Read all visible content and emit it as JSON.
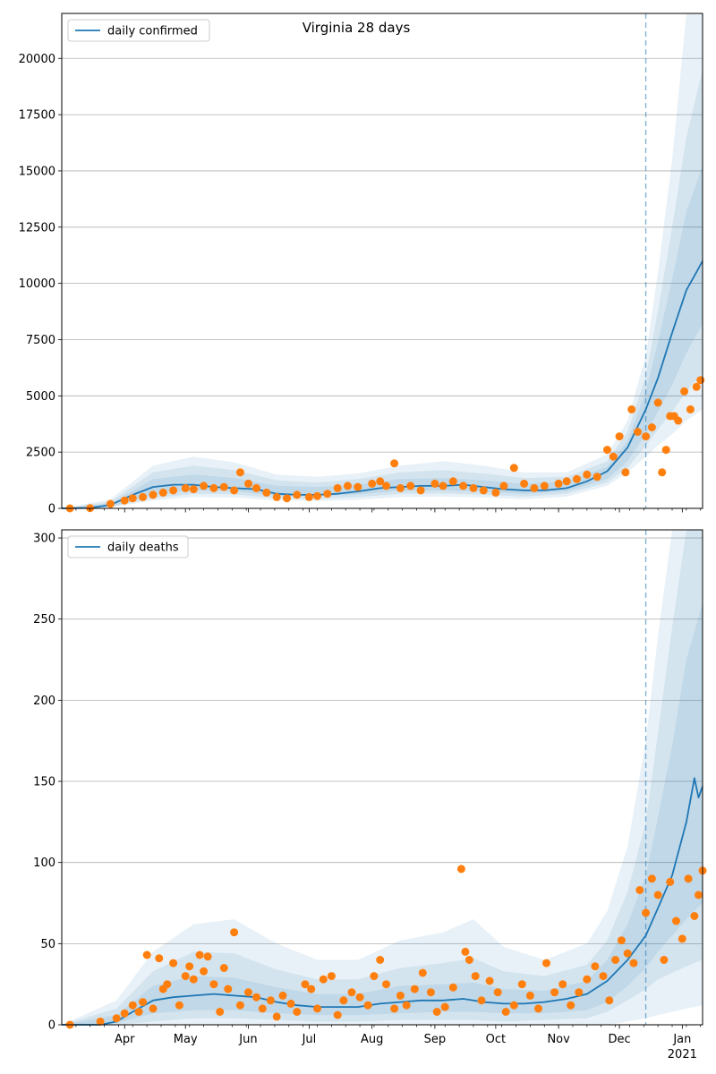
{
  "figure": {
    "title": "Virginia 28 days",
    "x_labels": [
      "Apr",
      "May",
      "Jun",
      "Jul",
      "Aug",
      "Sep",
      "Oct",
      "Nov",
      "Dec",
      "Jan",
      "2021"
    ],
    "forecast_start": "2020-12-14"
  },
  "colors": {
    "median_line": "#1f77b4",
    "band": "#1f77b4",
    "observed": "#ff7f0e",
    "grid": "#b0b0b0"
  },
  "chart_data": [
    {
      "type": "line",
      "legend_label": "daily confirmed",
      "legend_location": "upper left",
      "x_range": [
        "2020-03-01",
        "2021-01-11"
      ],
      "ylim": [
        0,
        22000
      ],
      "yticks": [
        0,
        2500,
        5000,
        7500,
        10000,
        12500,
        15000,
        17500,
        20000
      ],
      "ytick_labels": [
        "0",
        "2500",
        "5000",
        "7500",
        "10000",
        "12500",
        "15000",
        "17500",
        "20000"
      ],
      "grid": "horizontal",
      "median": {
        "x": [
          "2020-03-01",
          "2020-03-15",
          "2020-03-25",
          "2020-04-05",
          "2020-04-15",
          "2020-04-25",
          "2020-05-05",
          "2020-05-15",
          "2020-05-25",
          "2020-06-05",
          "2020-06-15",
          "2020-06-25",
          "2020-07-05",
          "2020-07-15",
          "2020-07-25",
          "2020-08-05",
          "2020-08-15",
          "2020-08-25",
          "2020-09-05",
          "2020-09-15",
          "2020-09-25",
          "2020-10-05",
          "2020-10-15",
          "2020-10-25",
          "2020-11-05",
          "2020-11-15",
          "2020-11-25",
          "2020-12-05",
          "2020-12-14",
          "2020-12-20",
          "2020-12-27",
          "2021-01-03",
          "2021-01-08",
          "2021-01-11"
        ],
        "y": [
          0,
          20,
          150,
          600,
          950,
          1050,
          1050,
          950,
          900,
          850,
          650,
          600,
          600,
          650,
          750,
          900,
          950,
          1000,
          1000,
          1050,
          950,
          850,
          800,
          800,
          900,
          1200,
          1650,
          2700,
          4400,
          5800,
          7800,
          9700,
          10500,
          11000
        ]
      },
      "bands": [
        {
          "x": [
            "2020-03-01",
            "2020-03-25",
            "2020-04-15",
            "2020-05-05",
            "2020-05-25",
            "2020-06-15",
            "2020-07-05",
            "2020-07-25",
            "2020-08-15",
            "2020-09-05",
            "2020-09-25",
            "2020-10-15",
            "2020-11-05",
            "2020-11-25",
            "2020-12-05",
            "2020-12-14",
            "2020-12-20",
            "2020-12-27",
            "2021-01-03",
            "2021-01-11"
          ],
          "low": [
            0,
            40,
            350,
            500,
            480,
            350,
            330,
            380,
            500,
            520,
            480,
            400,
            520,
            1000,
            1600,
            2300,
            2800,
            3300,
            3900,
            4400
          ],
          "high": [
            0,
            400,
            1900,
            2300,
            2050,
            1500,
            1400,
            1550,
            1900,
            2100,
            1900,
            1600,
            1600,
            2400,
            3900,
            6800,
            10500,
            15500,
            22000,
            22000
          ]
        },
        {
          "x": [
            "2020-03-01",
            "2020-03-25",
            "2020-04-15",
            "2020-05-05",
            "2020-05-25",
            "2020-06-15",
            "2020-07-05",
            "2020-07-25",
            "2020-08-15",
            "2020-09-05",
            "2020-09-25",
            "2020-10-15",
            "2020-11-05",
            "2020-11-25",
            "2020-12-05",
            "2020-12-14",
            "2020-12-20",
            "2020-12-27",
            "2021-01-03",
            "2021-01-11"
          ],
          "low": [
            0,
            60,
            450,
            650,
            620,
            450,
            430,
            500,
            650,
            660,
            610,
            520,
            650,
            1150,
            1800,
            2800,
            3500,
            4300,
            5200,
            6000
          ],
          "high": [
            0,
            300,
            1600,
            1900,
            1700,
            1250,
            1150,
            1300,
            1600,
            1700,
            1550,
            1350,
            1400,
            2100,
            3400,
            5900,
            8800,
            12500,
            16500,
            19500
          ]
        },
        {
          "x": [
            "2020-03-01",
            "2020-03-25",
            "2020-04-15",
            "2020-05-05",
            "2020-05-25",
            "2020-06-15",
            "2020-07-05",
            "2020-07-25",
            "2020-08-15",
            "2020-09-05",
            "2020-09-25",
            "2020-10-15",
            "2020-11-05",
            "2020-11-25",
            "2020-12-05",
            "2020-12-14",
            "2020-12-20",
            "2020-12-27",
            "2021-01-03",
            "2021-01-11"
          ],
          "low": [
            0,
            80,
            600,
            800,
            770,
            560,
            540,
            620,
            780,
            800,
            740,
            640,
            760,
            1300,
            2100,
            3300,
            4300,
            5500,
            6900,
            8200
          ],
          "high": [
            0,
            220,
            1300,
            1500,
            1350,
            1000,
            950,
            1050,
            1300,
            1350,
            1250,
            1100,
            1200,
            1850,
            3000,
            5200,
            7400,
            10200,
            13200,
            15200
          ]
        }
      ],
      "observed": {
        "x": [
          "2020-03-05",
          "2020-03-15",
          "2020-03-25",
          "2020-04-01",
          "2020-04-05",
          "2020-04-10",
          "2020-04-15",
          "2020-04-20",
          "2020-04-25",
          "2020-05-01",
          "2020-05-05",
          "2020-05-10",
          "2020-05-15",
          "2020-05-20",
          "2020-05-25",
          "2020-05-28",
          "2020-06-01",
          "2020-06-05",
          "2020-06-10",
          "2020-06-15",
          "2020-06-20",
          "2020-06-25",
          "2020-07-01",
          "2020-07-05",
          "2020-07-10",
          "2020-07-15",
          "2020-07-20",
          "2020-07-25",
          "2020-08-01",
          "2020-08-05",
          "2020-08-08",
          "2020-08-12",
          "2020-08-15",
          "2020-08-20",
          "2020-08-25",
          "2020-09-01",
          "2020-09-05",
          "2020-09-10",
          "2020-09-15",
          "2020-09-20",
          "2020-09-25",
          "2020-10-01",
          "2020-10-05",
          "2020-10-10",
          "2020-10-15",
          "2020-10-20",
          "2020-10-25",
          "2020-11-01",
          "2020-11-05",
          "2020-11-10",
          "2020-11-15",
          "2020-11-20",
          "2020-11-25",
          "2020-11-28",
          "2020-12-01",
          "2020-12-04",
          "2020-12-07",
          "2020-12-10",
          "2020-12-14",
          "2020-12-17",
          "2020-12-20",
          "2020-12-22",
          "2020-12-24",
          "2020-12-26",
          "2020-12-28",
          "2020-12-30",
          "2021-01-02",
          "2021-01-05",
          "2021-01-08",
          "2021-01-10"
        ],
        "y": [
          0,
          10,
          200,
          350,
          450,
          500,
          600,
          700,
          800,
          900,
          850,
          1000,
          900,
          950,
          800,
          1600,
          1100,
          900,
          700,
          500,
          450,
          600,
          500,
          550,
          650,
          900,
          1000,
          950,
          1100,
          1200,
          1000,
          2000,
          900,
          1000,
          800,
          1100,
          1000,
          1200,
          1000,
          900,
          800,
          700,
          1000,
          1800,
          1100,
          900,
          1000,
          1100,
          1200,
          1300,
          1500,
          1400,
          2600,
          2300,
          3200,
          1600,
          4400,
          3400,
          3200,
          3600,
          4700,
          1600,
          2600,
          4100,
          4100,
          3900,
          5200,
          4400,
          5400,
          5700
        ]
      }
    },
    {
      "type": "line",
      "legend_label": "daily deaths",
      "legend_location": "upper left",
      "x_range": [
        "2020-03-01",
        "2021-01-11"
      ],
      "ylim": [
        0,
        305
      ],
      "yticks": [
        0,
        50,
        100,
        150,
        200,
        250,
        300
      ],
      "ytick_labels": [
        "0",
        "50",
        "100",
        "150",
        "200",
        "250",
        "300"
      ],
      "grid": "horizontal",
      "median": {
        "x": [
          "2020-03-01",
          "2020-03-20",
          "2020-03-28",
          "2020-04-05",
          "2020-04-15",
          "2020-04-25",
          "2020-05-05",
          "2020-05-15",
          "2020-05-25",
          "2020-06-05",
          "2020-06-15",
          "2020-06-25",
          "2020-07-05",
          "2020-07-15",
          "2020-07-25",
          "2020-08-05",
          "2020-08-15",
          "2020-08-25",
          "2020-09-05",
          "2020-09-15",
          "2020-09-25",
          "2020-10-05",
          "2020-10-15",
          "2020-10-25",
          "2020-11-05",
          "2020-11-15",
          "2020-11-25",
          "2020-12-05",
          "2020-12-14",
          "2020-12-20",
          "2020-12-27",
          "2021-01-03",
          "2021-01-07",
          "2021-01-09",
          "2021-01-11"
        ],
        "y": [
          0,
          0,
          2,
          8,
          15,
          17,
          18,
          19,
          18,
          17,
          14,
          12,
          11,
          11,
          11,
          13,
          14,
          15,
          15,
          16,
          14,
          13,
          13,
          14,
          16,
          19,
          27,
          40,
          55,
          72,
          92,
          125,
          152,
          140,
          147
        ]
      },
      "bands": [
        {
          "x": [
            "2020-03-01",
            "2020-03-28",
            "2020-04-15",
            "2020-05-05",
            "2020-05-25",
            "2020-06-15",
            "2020-07-05",
            "2020-07-25",
            "2020-08-15",
            "2020-09-05",
            "2020-09-20",
            "2020-10-05",
            "2020-10-25",
            "2020-11-15",
            "2020-11-25",
            "2020-12-05",
            "2020-12-14",
            "2020-12-20",
            "2020-12-27",
            "2021-01-03",
            "2021-01-11"
          ],
          "low": [
            0,
            0,
            0,
            0,
            0,
            0,
            0,
            0,
            0,
            0,
            0,
            0,
            0,
            0,
            0,
            2,
            4,
            6,
            8,
            10,
            12
          ],
          "high": [
            0,
            15,
            45,
            62,
            65,
            50,
            40,
            40,
            52,
            57,
            65,
            48,
            40,
            50,
            70,
            110,
            175,
            240,
            305,
            305,
            305
          ]
        },
        {
          "x": [
            "2020-03-01",
            "2020-03-28",
            "2020-04-15",
            "2020-05-05",
            "2020-05-25",
            "2020-06-15",
            "2020-07-05",
            "2020-07-25",
            "2020-08-15",
            "2020-09-05",
            "2020-09-20",
            "2020-10-05",
            "2020-10-25",
            "2020-11-15",
            "2020-11-25",
            "2020-12-05",
            "2020-12-14",
            "2020-12-20",
            "2020-12-27",
            "2021-01-03",
            "2021-01-11"
          ],
          "low": [
            0,
            0,
            2,
            4,
            4,
            3,
            2,
            2,
            3,
            3,
            3,
            2,
            3,
            4,
            8,
            15,
            22,
            28,
            32,
            36,
            40
          ],
          "high": [
            0,
            10,
            33,
            45,
            44,
            34,
            28,
            28,
            35,
            38,
            41,
            33,
            30,
            37,
            52,
            82,
            125,
            180,
            245,
            305,
            305
          ]
        },
        {
          "x": [
            "2020-03-01",
            "2020-03-28",
            "2020-04-15",
            "2020-05-05",
            "2020-05-25",
            "2020-06-15",
            "2020-07-05",
            "2020-07-25",
            "2020-08-15",
            "2020-09-05",
            "2020-09-20",
            "2020-10-05",
            "2020-10-25",
            "2020-11-15",
            "2020-11-25",
            "2020-12-05",
            "2020-12-14",
            "2020-12-20",
            "2020-12-27",
            "2021-01-03",
            "2021-01-11"
          ],
          "low": [
            0,
            1,
            7,
            9,
            9,
            7,
            6,
            6,
            7,
            8,
            8,
            7,
            7,
            9,
            14,
            24,
            35,
            45,
            55,
            65,
            75
          ],
          "high": [
            0,
            6,
            24,
            30,
            29,
            23,
            19,
            19,
            24,
            25,
            26,
            22,
            21,
            27,
            40,
            62,
            92,
            128,
            172,
            225,
            260
          ]
        }
      ],
      "observed": {
        "x": [
          "2020-03-05",
          "2020-03-20",
          "2020-03-28",
          "2020-04-01",
          "2020-04-05",
          "2020-04-08",
          "2020-04-10",
          "2020-04-12",
          "2020-04-15",
          "2020-04-18",
          "2020-04-20",
          "2020-04-22",
          "2020-04-25",
          "2020-04-28",
          "2020-05-01",
          "2020-05-03",
          "2020-05-05",
          "2020-05-08",
          "2020-05-10",
          "2020-05-12",
          "2020-05-15",
          "2020-05-18",
          "2020-05-20",
          "2020-05-22",
          "2020-05-25",
          "2020-05-28",
          "2020-06-01",
          "2020-06-05",
          "2020-06-08",
          "2020-06-12",
          "2020-06-15",
          "2020-06-18",
          "2020-06-22",
          "2020-06-25",
          "2020-06-29",
          "2020-07-02",
          "2020-07-05",
          "2020-07-08",
          "2020-07-12",
          "2020-07-15",
          "2020-07-18",
          "2020-07-22",
          "2020-07-26",
          "2020-07-30",
          "2020-08-02",
          "2020-08-05",
          "2020-08-08",
          "2020-08-12",
          "2020-08-15",
          "2020-08-18",
          "2020-08-22",
          "2020-08-26",
          "2020-08-30",
          "2020-09-02",
          "2020-09-06",
          "2020-09-10",
          "2020-09-14",
          "2020-09-16",
          "2020-09-18",
          "2020-09-21",
          "2020-09-24",
          "2020-09-28",
          "2020-10-02",
          "2020-10-06",
          "2020-10-10",
          "2020-10-14",
          "2020-10-18",
          "2020-10-22",
          "2020-10-26",
          "2020-10-30",
          "2020-11-03",
          "2020-11-07",
          "2020-11-11",
          "2020-11-15",
          "2020-11-19",
          "2020-11-23",
          "2020-11-26",
          "2020-11-29",
          "2020-12-02",
          "2020-12-05",
          "2020-12-08",
          "2020-12-11",
          "2020-12-14",
          "2020-12-17",
          "2020-12-20",
          "2020-12-23",
          "2020-12-26",
          "2020-12-29",
          "2021-01-01",
          "2021-01-04",
          "2021-01-07",
          "2021-01-09",
          "2021-01-11"
        ],
        "y": [
          0,
          2,
          4,
          7,
          12,
          8,
          14,
          43,
          10,
          41,
          22,
          25,
          38,
          12,
          30,
          36,
          28,
          43,
          33,
          42,
          25,
          8,
          35,
          22,
          57,
          12,
          20,
          17,
          10,
          15,
          5,
          18,
          13,
          8,
          25,
          22,
          10,
          28,
          30,
          6,
          15,
          20,
          17,
          12,
          30,
          40,
          25,
          10,
          18,
          12,
          22,
          32,
          20,
          8,
          11,
          23,
          96,
          45,
          40,
          30,
          15,
          27,
          20,
          8,
          12,
          25,
          18,
          10,
          38,
          20,
          25,
          12,
          20,
          28,
          36,
          30,
          15,
          40,
          52,
          44,
          38,
          83,
          69,
          90,
          80,
          40,
          88,
          64,
          53,
          90,
          67,
          80,
          95
        ]
      }
    }
  ]
}
